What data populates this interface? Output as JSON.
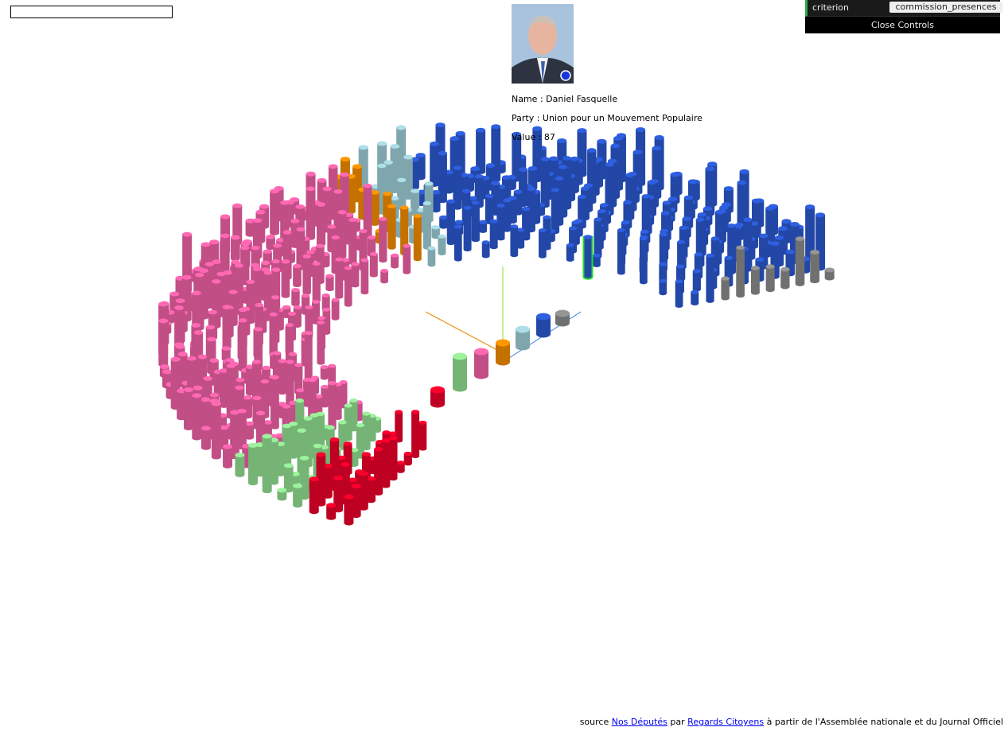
{
  "controls": {
    "label": "criterion",
    "value": "commission_presences",
    "close": "Close Controls"
  },
  "info": {
    "name": "Name : Daniel Fasquelle",
    "party": "Party : Union pour un Mouvement Populaire",
    "value": "Value : 87"
  },
  "footer": {
    "prefix": "source",
    "link1": "Nos Députés",
    "middle": "par",
    "link2": "Regards Citoyens",
    "suffix": "à partir de l'Assemblée nationale et du Journal Officiel"
  }
}
